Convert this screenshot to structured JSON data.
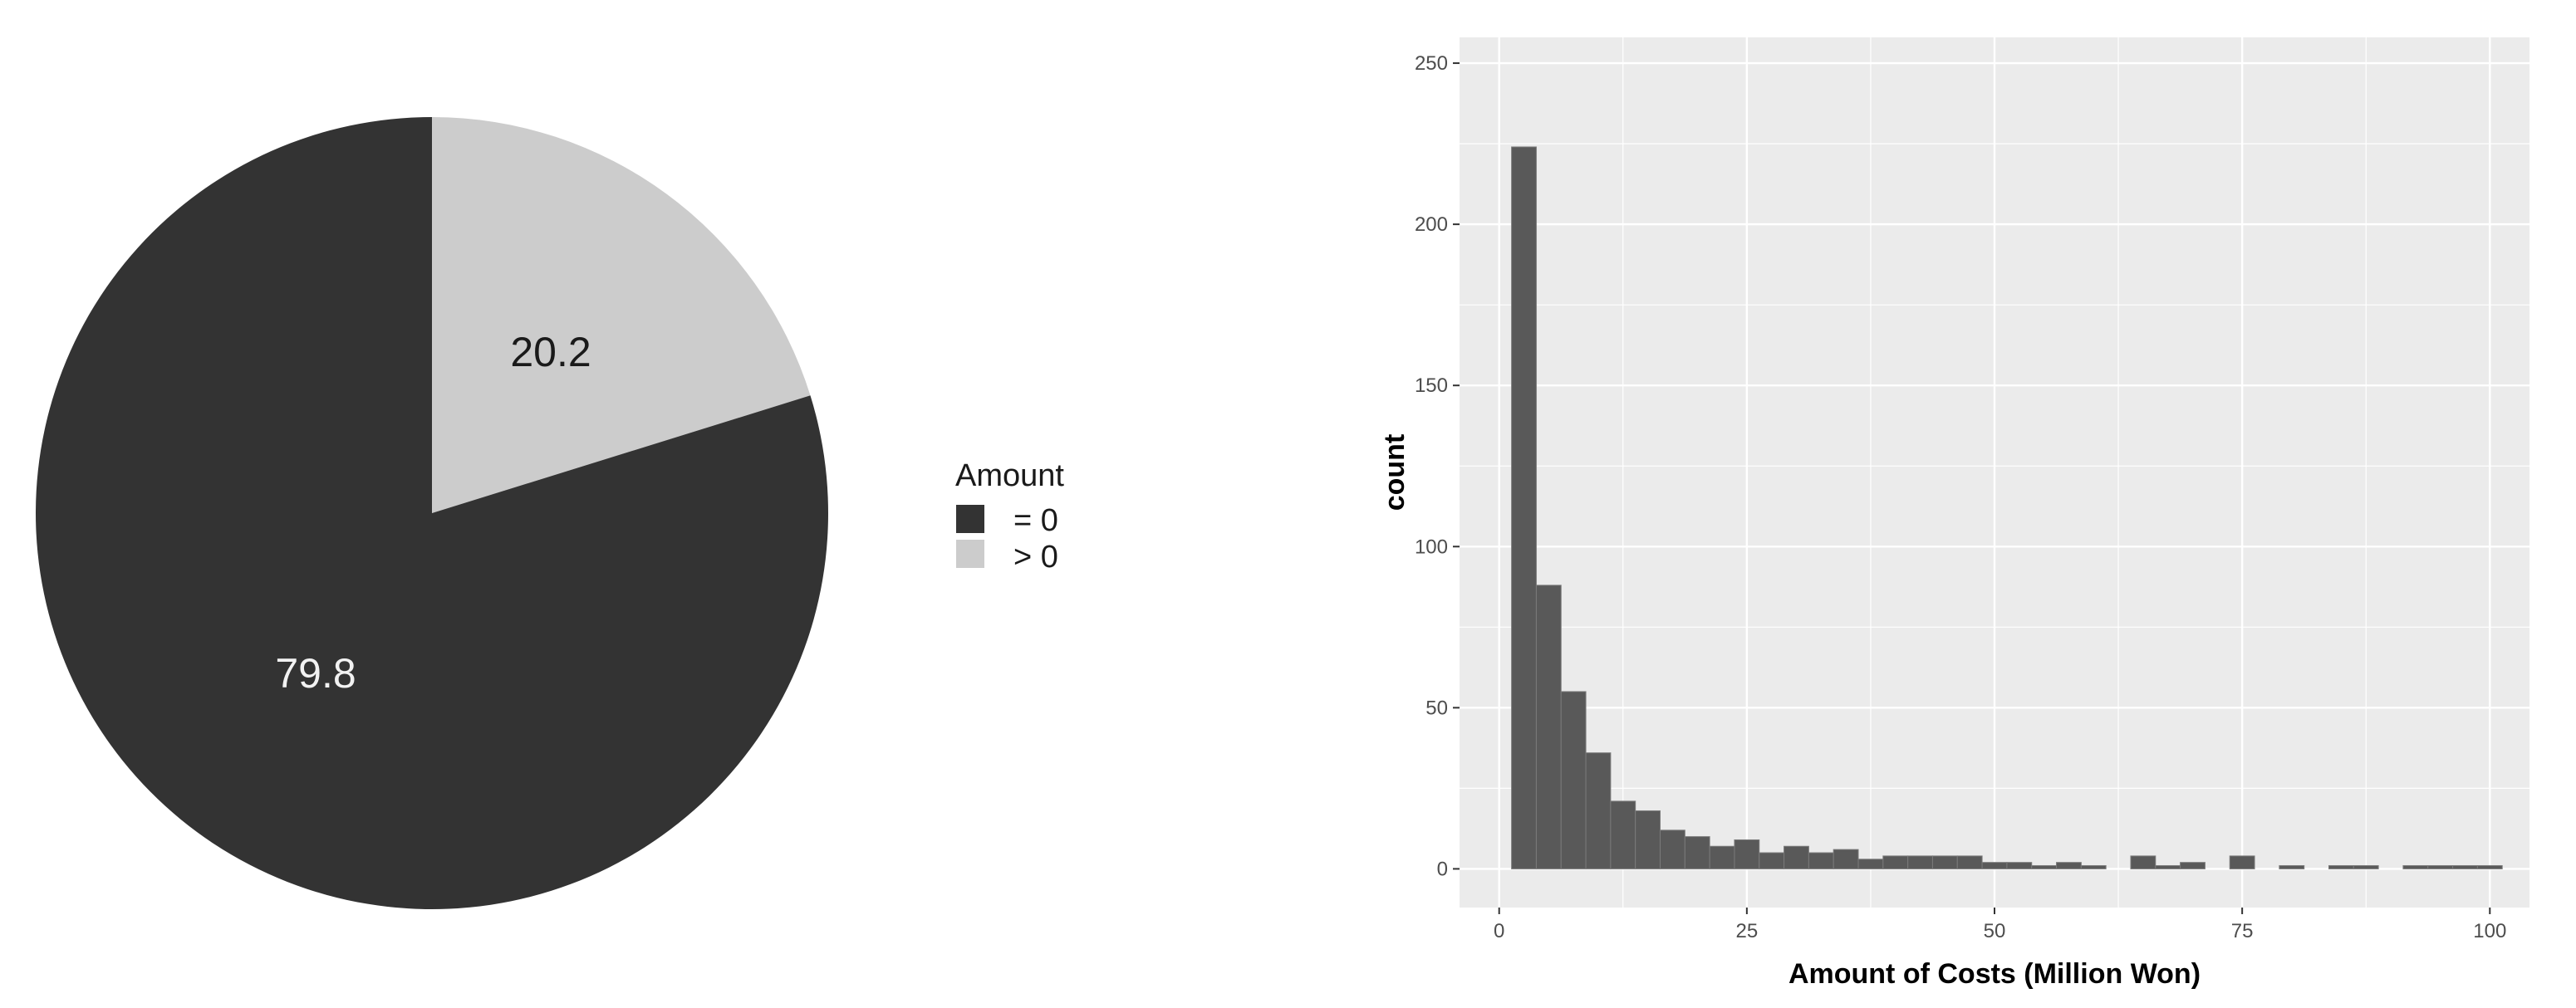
{
  "chart_data": [
    {
      "type": "pie",
      "slices": [
        {
          "label": "= 0",
          "value": 79.8,
          "value_label": "79.8",
          "color": "#333333",
          "text_color": "#f2f2f2"
        },
        {
          "label": "> 0",
          "value": 20.2,
          "value_label": "20.2",
          "color": "#cccccc",
          "text_color": "#1a1a1a"
        }
      ],
      "legend": {
        "title": "Amount",
        "placement": "right"
      }
    },
    {
      "type": "bar",
      "subtype": "histogram",
      "xlabel": "Amount of Costs (Million Won)",
      "ylabel": "count",
      "xlim": [
        -4,
        104
      ],
      "ylim": [
        -12,
        258
      ],
      "x_ticks": [
        0,
        25,
        50,
        75,
        100
      ],
      "y_ticks": [
        0,
        50,
        100,
        150,
        200,
        250
      ],
      "bin_width": 2.5,
      "bins": [
        {
          "x0": 1.25,
          "x1": 3.75,
          "count": 224
        },
        {
          "x0": 3.75,
          "x1": 6.25,
          "count": 88
        },
        {
          "x0": 6.25,
          "x1": 8.75,
          "count": 55
        },
        {
          "x0": 8.75,
          "x1": 11.25,
          "count": 36
        },
        {
          "x0": 11.25,
          "x1": 13.75,
          "count": 21
        },
        {
          "x0": 13.75,
          "x1": 16.25,
          "count": 18
        },
        {
          "x0": 16.25,
          "x1": 18.75,
          "count": 12
        },
        {
          "x0": 18.75,
          "x1": 21.25,
          "count": 10
        },
        {
          "x0": 21.25,
          "x1": 23.75,
          "count": 7
        },
        {
          "x0": 23.75,
          "x1": 26.25,
          "count": 9
        },
        {
          "x0": 26.25,
          "x1": 28.75,
          "count": 5
        },
        {
          "x0": 28.75,
          "x1": 31.25,
          "count": 7
        },
        {
          "x0": 31.25,
          "x1": 33.75,
          "count": 5
        },
        {
          "x0": 33.75,
          "x1": 36.25,
          "count": 6
        },
        {
          "x0": 36.25,
          "x1": 38.75,
          "count": 3
        },
        {
          "x0": 38.75,
          "x1": 41.25,
          "count": 4
        },
        {
          "x0": 41.25,
          "x1": 43.75,
          "count": 4
        },
        {
          "x0": 43.75,
          "x1": 46.25,
          "count": 4
        },
        {
          "x0": 46.25,
          "x1": 48.75,
          "count": 4
        },
        {
          "x0": 48.75,
          "x1": 51.25,
          "count": 2
        },
        {
          "x0": 51.25,
          "x1": 53.75,
          "count": 2
        },
        {
          "x0": 53.75,
          "x1": 56.25,
          "count": 1
        },
        {
          "x0": 56.25,
          "x1": 58.75,
          "count": 2
        },
        {
          "x0": 58.75,
          "x1": 61.25,
          "count": 1
        },
        {
          "x0": 63.75,
          "x1": 66.25,
          "count": 4
        },
        {
          "x0": 66.25,
          "x1": 68.75,
          "count": 1
        },
        {
          "x0": 68.75,
          "x1": 71.25,
          "count": 2
        },
        {
          "x0": 73.75,
          "x1": 76.25,
          "count": 4
        },
        {
          "x0": 78.75,
          "x1": 81.25,
          "count": 1
        },
        {
          "x0": 83.75,
          "x1": 86.25,
          "count": 1
        },
        {
          "x0": 86.25,
          "x1": 88.75,
          "count": 1
        },
        {
          "x0": 91.25,
          "x1": 93.75,
          "count": 1
        },
        {
          "x0": 93.75,
          "x1": 96.25,
          "count": 1
        },
        {
          "x0": 96.25,
          "x1": 98.75,
          "count": 1
        },
        {
          "x0": 98.75,
          "x1": 101.25,
          "count": 1
        }
      ],
      "bar_color": "#595959",
      "panel_background": "#ebebeb",
      "grid": true,
      "grid_color": "#ffffff"
    }
  ]
}
